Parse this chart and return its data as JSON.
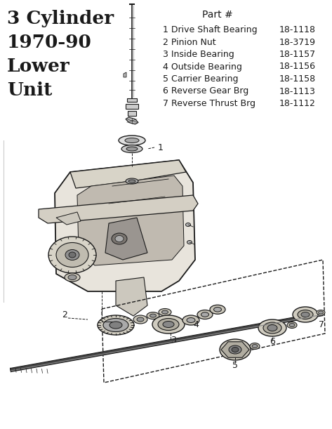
{
  "title_lines": [
    "3 Cylinder",
    "1970-90",
    "Lower",
    "Unit"
  ],
  "part_header": "Part #",
  "parts": [
    {
      "num": "1",
      "name": "Drive Shaft Bearing",
      "part": "18-1118"
    },
    {
      "num": "2",
      "name": "Pinion Nut",
      "part": "18-3719"
    },
    {
      "num": "3",
      "name": "Inside Bearing",
      "part": "18-1157"
    },
    {
      "num": "4",
      "name": "Outside Bearing",
      "part": "18-1156"
    },
    {
      "num": "5",
      "name": "Carrier Bearing",
      "part": "18-1158"
    },
    {
      "num": "6",
      "name": "Reverse Gear Brg",
      "part": "18-1113"
    },
    {
      "num": "7",
      "name": "Reverse Thrust Brg",
      "part": "18-1112"
    }
  ],
  "bg_color": "#ffffff",
  "text_color": "#1a1a1a",
  "line_color": "#1a1a1a",
  "fig_width": 4.73,
  "fig_height": 6.11,
  "dpi": 100
}
